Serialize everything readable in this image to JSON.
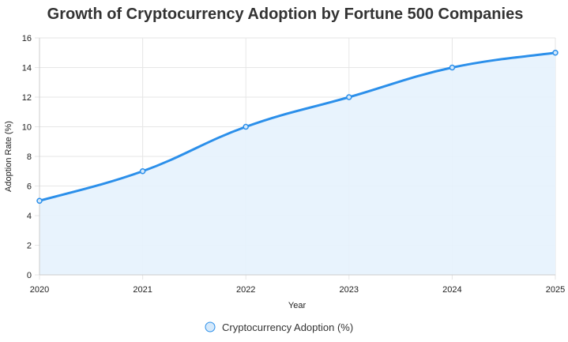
{
  "chart_data": {
    "type": "area",
    "title": "Growth of Cryptocurrency Adoption by Fortune 500 Companies",
    "xlabel": "Year",
    "ylabel": "Adoption Rate (%)",
    "categories": [
      "2020",
      "2021",
      "2022",
      "2023",
      "2024",
      "2025"
    ],
    "series": [
      {
        "name": "Cryptocurrency Adoption (%)",
        "values": [
          5,
          7,
          10,
          12,
          14,
          15
        ]
      }
    ],
    "ylim": [
      0,
      16
    ],
    "yticks": [
      "0",
      "2",
      "4",
      "6",
      "8",
      "10",
      "12",
      "14",
      "16"
    ],
    "grid": true,
    "legend_position": "bottom",
    "colors": {
      "line": "#2b8fea",
      "fill": "#e6f2fd",
      "point_fill": "#d5e9fb",
      "grid": "#e6e6e6",
      "axis": "#cccccc",
      "title": "#333333"
    }
  }
}
